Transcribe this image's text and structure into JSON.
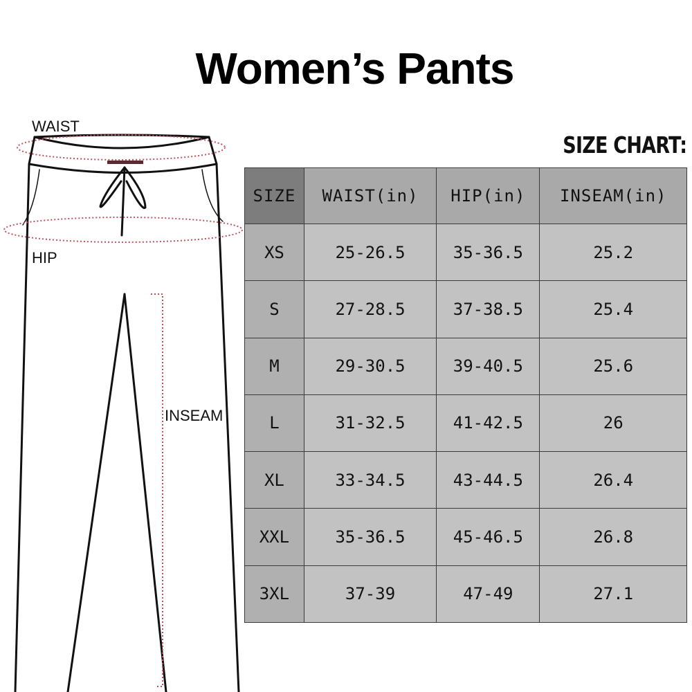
{
  "title": "Women’s Pants",
  "chart_label": "SIZE CHART:",
  "diagram": {
    "waist_label": "WAIST",
    "hip_label": "HIP",
    "inseam_label": "INSEAM",
    "measure_color": "#c0505a"
  },
  "table": {
    "headers": [
      "SIZE",
      "WAIST(in)",
      "HIP(in)",
      "INSEAM(in)"
    ],
    "rows": [
      [
        "XS",
        "25-26.5",
        "35-36.5",
        "25.2"
      ],
      [
        "S",
        "27-28.5",
        "37-38.5",
        "25.4"
      ],
      [
        "M",
        "29-30.5",
        "39-40.5",
        "25.6"
      ],
      [
        "L",
        "31-32.5",
        "41-42.5",
        "26"
      ],
      [
        "XL",
        "33-34.5",
        "43-44.5",
        "26.4"
      ],
      [
        "XXL",
        "35-36.5",
        "45-46.5",
        "26.8"
      ],
      [
        "3XL",
        "37-39",
        "47-49",
        "27.1"
      ]
    ]
  }
}
